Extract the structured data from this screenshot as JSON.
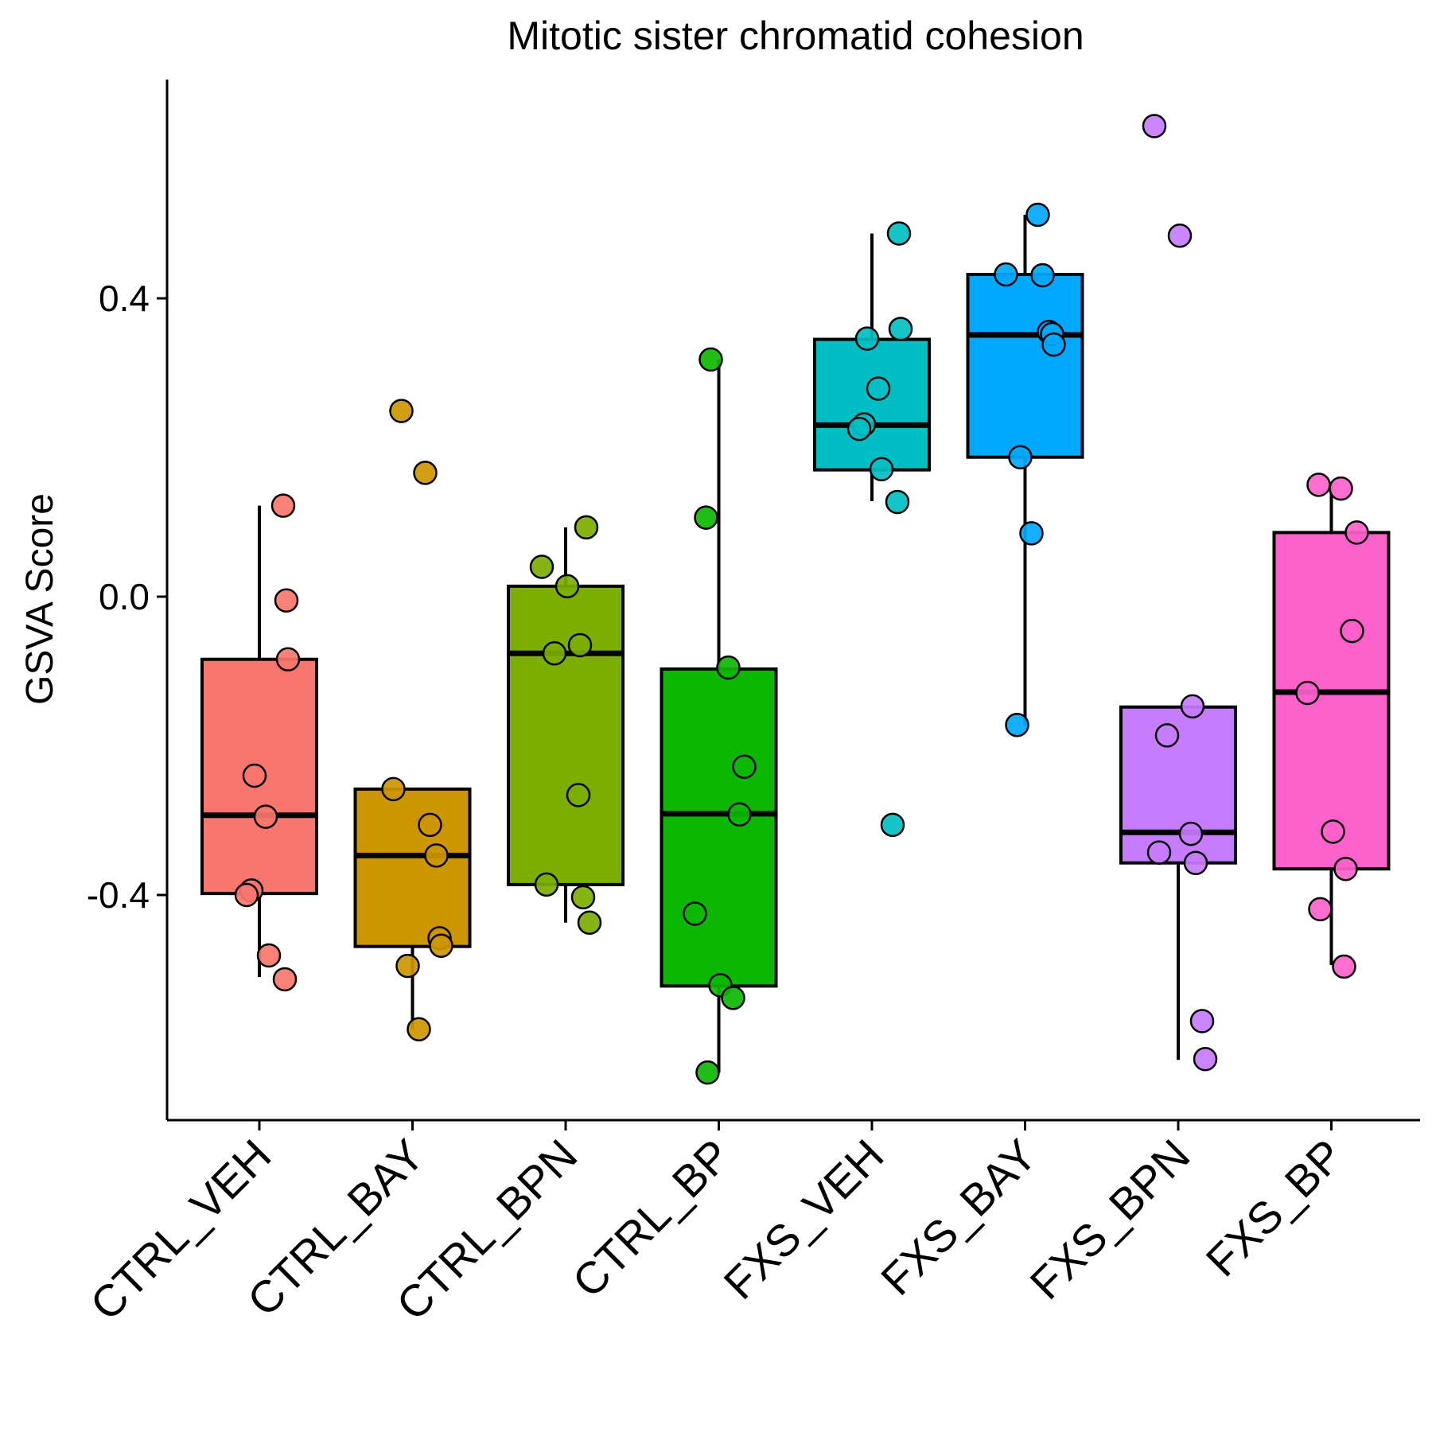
{
  "chart_data": {
    "type": "box",
    "title": "Mitotic sister chromatid cohesion",
    "xlabel": "",
    "ylabel": "GSVA Score",
    "ylim": [
      -0.69,
      0.7
    ],
    "yticks": [
      -0.4,
      0.0,
      0.4
    ],
    "ytick_labels": [
      "-0.4",
      "0.0",
      "0.4"
    ],
    "grid": false,
    "legend": "none",
    "categories": [
      "CTRL_VEH",
      "CTRL_BAY",
      "CTRL_BPN",
      "CTRL_BP",
      "FXS_VEH",
      "FXS_BAY",
      "FXS_BPN",
      "FXS_BP"
    ],
    "groups": [
      {
        "name": "CTRL_VEH",
        "color": "#F8766D",
        "box": {
          "whisker_low": -0.51,
          "q1": -0.398,
          "median": -0.293,
          "q3": -0.084,
          "whisker_high": 0.122
        },
        "points": [
          0.122,
          -0.005,
          -0.084,
          -0.24,
          -0.295,
          -0.394,
          -0.4,
          -0.481,
          -0.513
        ]
      },
      {
        "name": "CTRL_BAY",
        "color": "#CD9600",
        "box": {
          "whisker_low": -0.58,
          "q1": -0.469,
          "median": -0.347,
          "q3": -0.258,
          "whisker_high": -0.258
        },
        "points": [
          0.249,
          0.166,
          -0.258,
          -0.306,
          -0.347,
          -0.458,
          -0.468,
          -0.495,
          -0.58
        ]
      },
      {
        "name": "CTRL_BPN",
        "color": "#7CAE00",
        "box": {
          "whisker_low": -0.437,
          "q1": -0.386,
          "median": -0.076,
          "q3": 0.014,
          "whisker_high": 0.093
        },
        "points": [
          0.093,
          0.04,
          0.014,
          -0.065,
          -0.076,
          -0.266,
          -0.386,
          -0.403,
          -0.437
        ]
      },
      {
        "name": "CTRL_BP",
        "color": "#0CB702",
        "box": {
          "whisker_low": -0.638,
          "q1": -0.522,
          "median": -0.291,
          "q3": -0.097,
          "whisker_high": 0.318
        },
        "points": [
          0.318,
          0.106,
          -0.095,
          -0.228,
          -0.292,
          -0.425,
          -0.521,
          -0.538,
          -0.638
        ]
      },
      {
        "name": "FXS_VEH",
        "color": "#00BFC4",
        "box": {
          "whisker_low": 0.128,
          "q1": 0.17,
          "median": 0.23,
          "q3": 0.345,
          "whisker_high": 0.487
        },
        "points": [
          0.487,
          0.359,
          0.346,
          0.279,
          0.231,
          0.225,
          0.171,
          0.127,
          -0.306
        ]
      },
      {
        "name": "FXS_BAY",
        "color": "#00A9FF",
        "box": {
          "whisker_low": -0.173,
          "q1": 0.187,
          "median": 0.351,
          "q3": 0.432,
          "whisker_high": 0.512
        },
        "points": [
          0.512,
          0.432,
          0.431,
          0.355,
          0.352,
          0.338,
          0.187,
          0.085,
          -0.172
        ]
      },
      {
        "name": "FXS_BPN",
        "color": "#C77CFF",
        "box": {
          "whisker_low": -0.621,
          "q1": -0.357,
          "median": -0.316,
          "q3": -0.148,
          "whisker_high": -0.148
        },
        "points": [
          0.631,
          0.484,
          -0.147,
          -0.186,
          -0.318,
          -0.343,
          -0.357,
          -0.569,
          -0.62
        ]
      },
      {
        "name": "FXS_BP",
        "color": "#FF61CC",
        "box": {
          "whisker_low": -0.494,
          "q1": -0.365,
          "median": -0.128,
          "q3": 0.086,
          "whisker_high": 0.15
        },
        "points": [
          0.15,
          0.145,
          0.086,
          -0.046,
          -0.129,
          -0.315,
          -0.365,
          -0.419,
          -0.496
        ]
      }
    ]
  }
}
